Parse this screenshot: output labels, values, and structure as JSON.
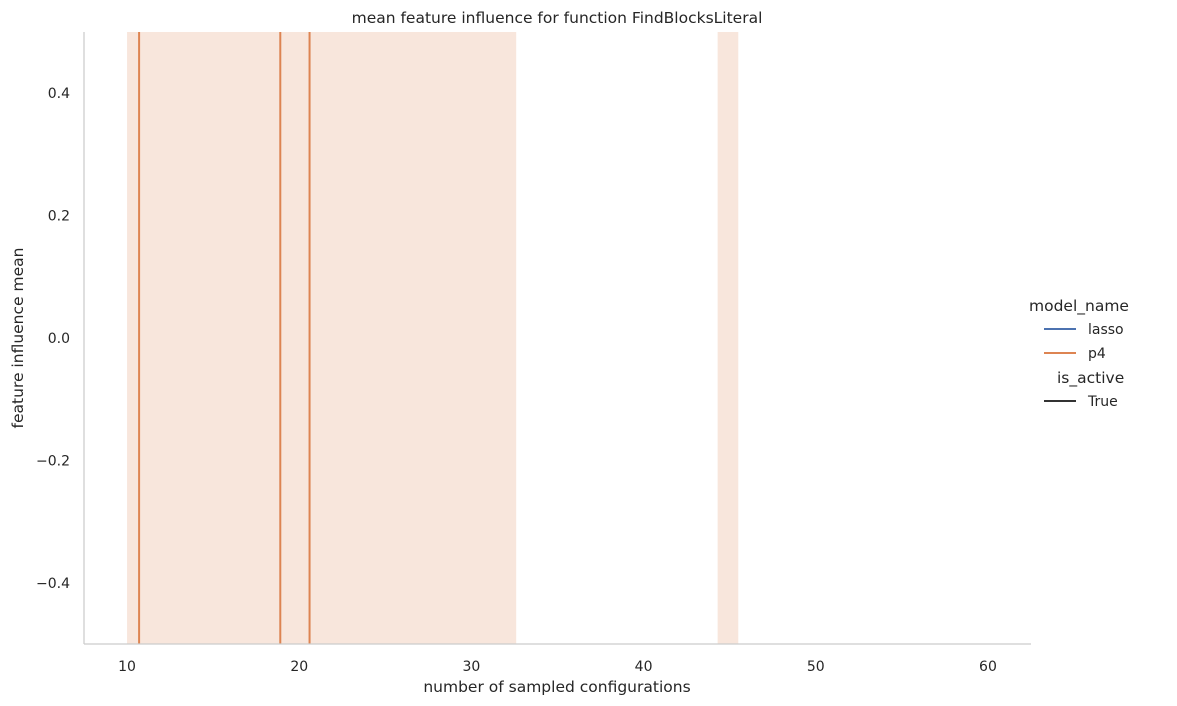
{
  "chart_data": {
    "type": "line",
    "title": "mean feature influence for function FindBlocksLiteral",
    "xlabel": "number of sampled configurations",
    "ylabel": "feature influence mean",
    "xlim": [
      7.5,
      62.5
    ],
    "ylim": [
      -0.5,
      0.5
    ],
    "x_ticks": [
      10,
      20,
      30,
      40,
      50,
      60
    ],
    "x_tick_labels": [
      "10",
      "20",
      "30",
      "40",
      "50",
      "60"
    ],
    "y_ticks": [
      -0.4,
      -0.2,
      0.0,
      0.2,
      0.4
    ],
    "y_tick_labels": [
      "−0.4",
      "−0.2",
      "0.0",
      "0.2",
      "0.4"
    ],
    "grid": false,
    "legend_position": "right",
    "series": [
      {
        "name": "p4",
        "color": "#dd8452",
        "vertical_lines_x": [
          10.7,
          18.9,
          20.6
        ],
        "confidence_bands_x": [
          [
            10.0,
            32.6
          ],
          [
            44.3,
            45.5
          ]
        ]
      }
    ],
    "legend": {
      "hue_title": "model_name",
      "hue_items": [
        {
          "label": "lasso",
          "color": "#4c72b0"
        },
        {
          "label": "p4",
          "color": "#dd8452"
        }
      ],
      "style_title": "is_active",
      "style_items": [
        {
          "label": "True",
          "color": "#333333"
        }
      ]
    }
  }
}
